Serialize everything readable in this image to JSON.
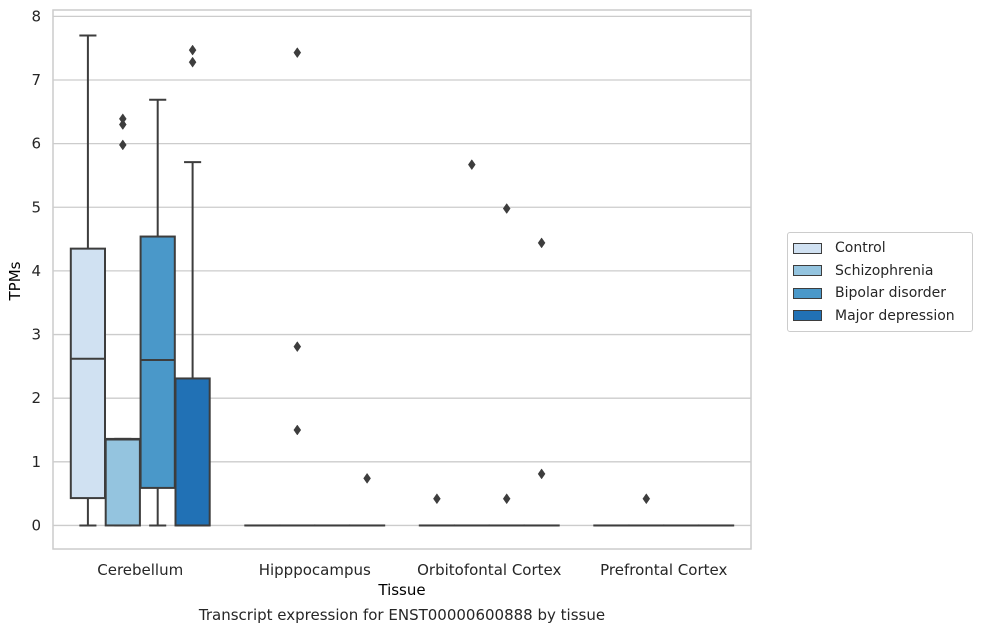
{
  "chart_data": {
    "type": "box",
    "title": "Transcript expression for ENST00000600888 by tissue",
    "xlabel": "Tissue",
    "ylabel": "TPMs",
    "ylim": [
      -0.37,
      8.1
    ],
    "yticks": [
      0,
      1,
      2,
      3,
      4,
      5,
      6,
      7,
      8
    ],
    "grid": true,
    "legend_position": "right",
    "categories": [
      "Cerebellum",
      "Hipppocampus",
      "Orbitofontal Cortex",
      "Prefrontal Cortex"
    ],
    "series": [
      {
        "name": "Control",
        "color": "#d0e1f2",
        "boxes": [
          {
            "q1": 0.43,
            "median": 2.62,
            "q3": 4.35,
            "whisker_low": 0.0,
            "whisker_high": 7.7,
            "outliers": []
          },
          {
            "q1": 0.0,
            "median": 0.0,
            "q3": 0.0,
            "whisker_low": 0.0,
            "whisker_high": 0.0,
            "outliers": []
          },
          {
            "q1": 0.0,
            "median": 0.0,
            "q3": 0.0,
            "whisker_low": 0.0,
            "whisker_high": 0.0,
            "outliers": [
              0.42
            ]
          },
          {
            "q1": 0.0,
            "median": 0.0,
            "q3": 0.0,
            "whisker_low": 0.0,
            "whisker_high": 0.0,
            "outliers": []
          }
        ]
      },
      {
        "name": "Schizophrenia",
        "color": "#94c4df",
        "boxes": [
          {
            "q1": 0.0,
            "median": 1.35,
            "q3": 1.36,
            "whisker_low": 0.0,
            "whisker_high": 1.36,
            "outliers": [
              5.98,
              6.3,
              6.39
            ]
          },
          {
            "q1": 0.0,
            "median": 0.0,
            "q3": 0.0,
            "whisker_low": 0.0,
            "whisker_high": 0.0,
            "outliers": [
              1.5,
              2.81,
              7.43
            ]
          },
          {
            "q1": 0.0,
            "median": 0.0,
            "q3": 0.0,
            "whisker_low": 0.0,
            "whisker_high": 0.0,
            "outliers": [
              5.67
            ]
          },
          {
            "q1": 0.0,
            "median": 0.0,
            "q3": 0.0,
            "whisker_low": 0.0,
            "whisker_high": 0.0,
            "outliers": [
              0.42
            ]
          }
        ]
      },
      {
        "name": "Bipolar disorder",
        "color": "#4a98c9",
        "boxes": [
          {
            "q1": 0.59,
            "median": 2.6,
            "q3": 4.54,
            "whisker_low": 0.0,
            "whisker_high": 6.69,
            "outliers": []
          },
          {
            "q1": 0.0,
            "median": 0.0,
            "q3": 0.0,
            "whisker_low": 0.0,
            "whisker_high": 0.0,
            "outliers": []
          },
          {
            "q1": 0.0,
            "median": 0.0,
            "q3": 0.0,
            "whisker_low": 0.0,
            "whisker_high": 0.0,
            "outliers": [
              0.42,
              4.98
            ]
          },
          {
            "q1": 0.0,
            "median": 0.0,
            "q3": 0.0,
            "whisker_low": 0.0,
            "whisker_high": 0.0,
            "outliers": []
          }
        ]
      },
      {
        "name": "Major depression",
        "color": "#2171b5",
        "boxes": [
          {
            "q1": 0.0,
            "median": 0.0,
            "q3": 2.31,
            "whisker_low": 0.0,
            "whisker_high": 5.71,
            "outliers": [
              7.28,
              7.47
            ]
          },
          {
            "q1": 0.0,
            "median": 0.0,
            "q3": 0.0,
            "whisker_low": 0.0,
            "whisker_high": 0.0,
            "outliers": [
              0.74
            ]
          },
          {
            "q1": 0.0,
            "median": 0.0,
            "q3": 0.0,
            "whisker_low": 0.0,
            "whisker_high": 0.0,
            "outliers": [
              0.81,
              4.44
            ]
          },
          {
            "q1": 0.0,
            "median": 0.0,
            "q3": 0.0,
            "whisker_low": 0.0,
            "whisker_high": 0.0,
            "outliers": []
          }
        ]
      }
    ]
  }
}
